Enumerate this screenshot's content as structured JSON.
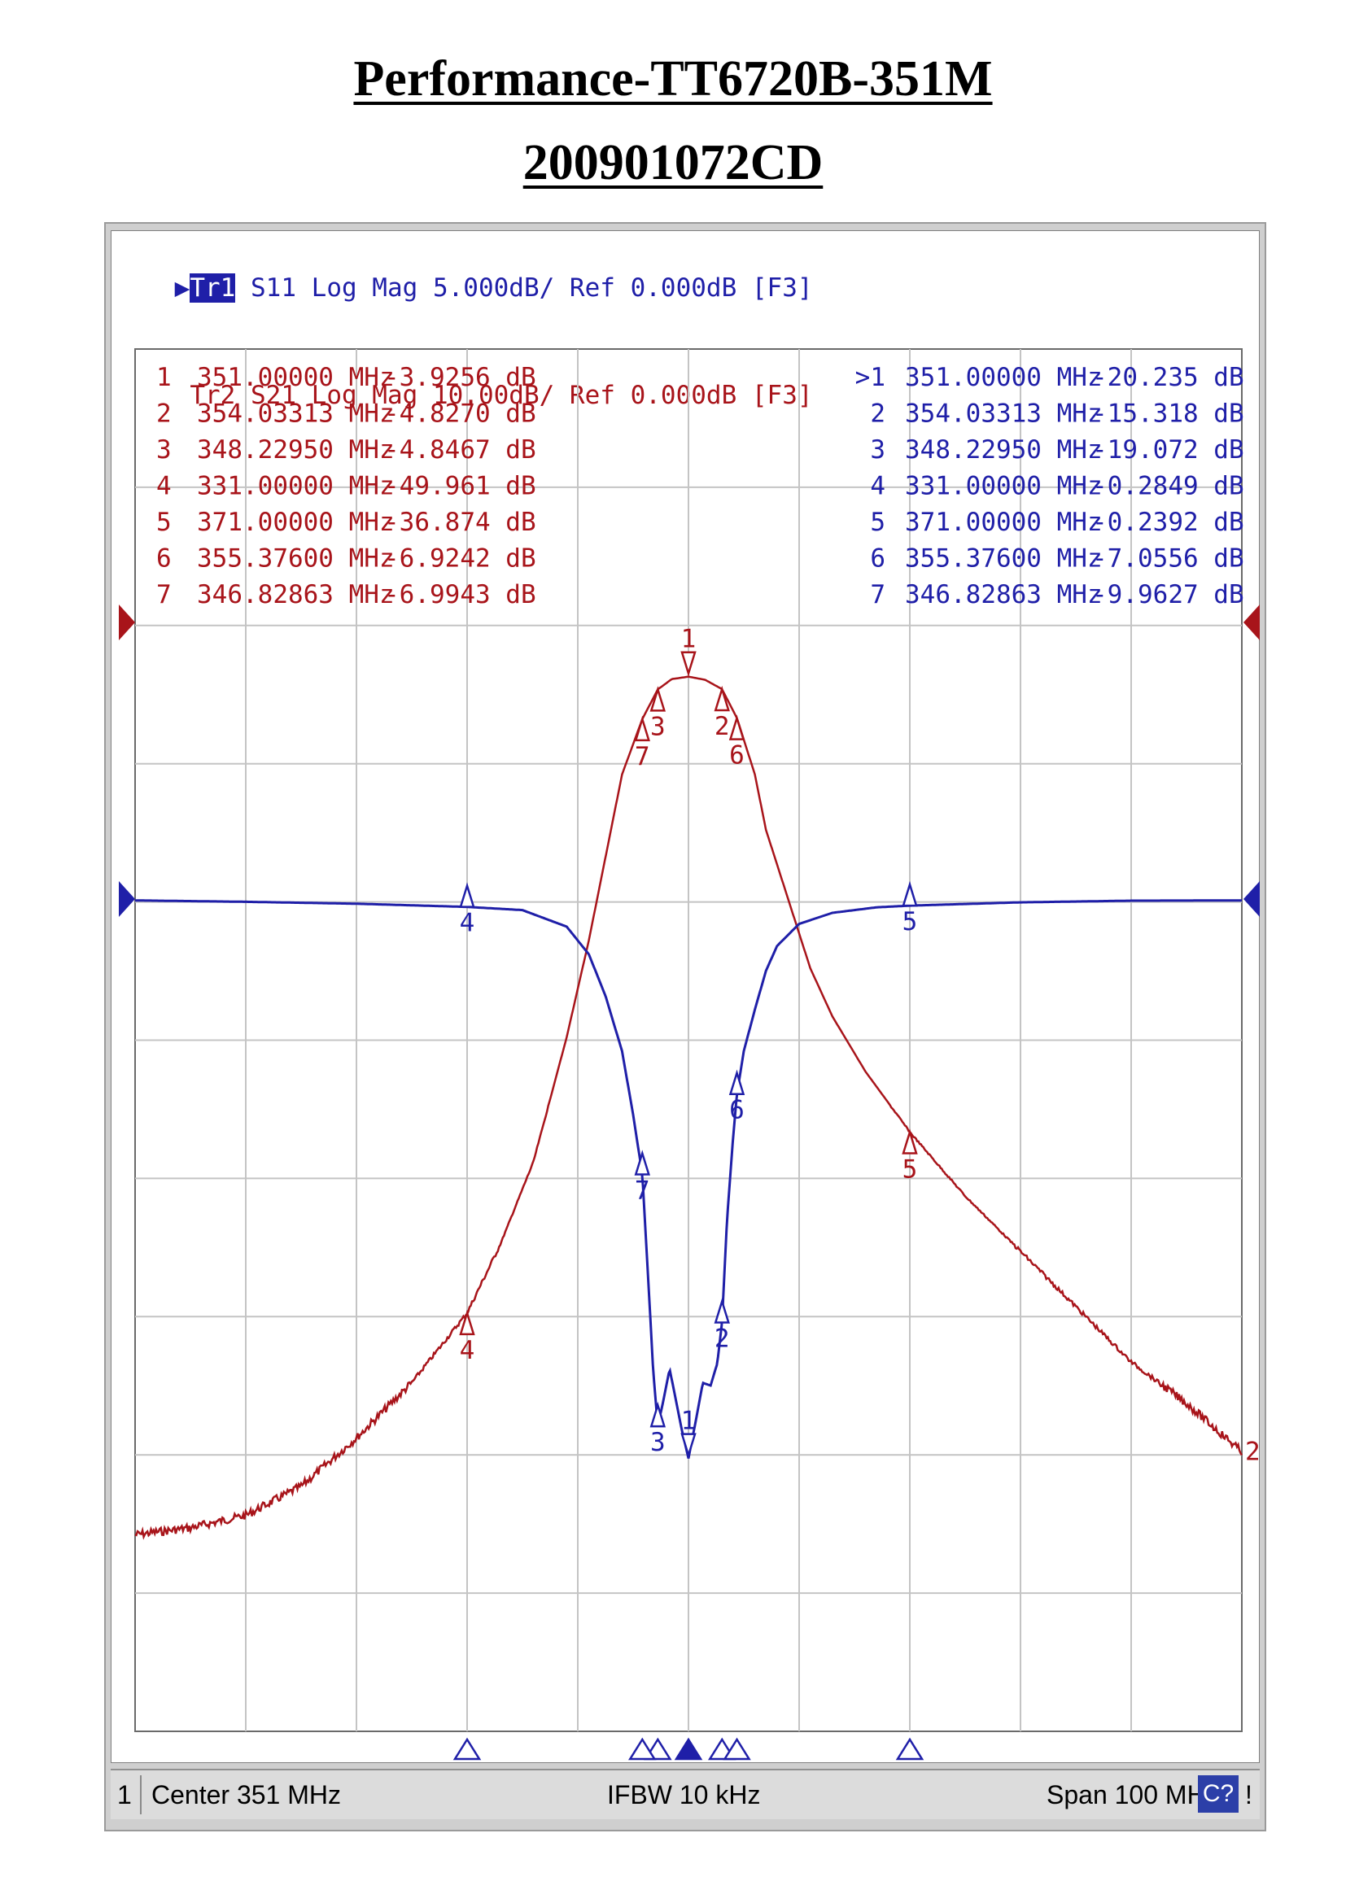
{
  "page": {
    "title": "Performance-TT6720B-351M",
    "subtitle": "200901072CD"
  },
  "traces": [
    {
      "label": "Tr1",
      "text": "S11 Log Mag 5.000dB/ Ref 0.000dB [F3]",
      "color": "#1f1fa8",
      "active": true
    },
    {
      "label": "Tr2",
      "text": "S21 Log Mag 10.00dB/ Ref 0.000dB [F3]",
      "color": "#a8141a",
      "active": false
    }
  ],
  "markers_s21": [
    {
      "num": "1",
      "freq": "351.00000 MHz",
      "val": "-3.9256 dB"
    },
    {
      "num": "2",
      "freq": "354.03313 MHz",
      "val": "-4.8270 dB"
    },
    {
      "num": "3",
      "freq": "348.22950 MHz",
      "val": "-4.8467 dB"
    },
    {
      "num": "4",
      "freq": "331.00000 MHz",
      "val": "-49.961 dB"
    },
    {
      "num": "5",
      "freq": "371.00000 MHz",
      "val": "-36.874 dB"
    },
    {
      "num": "6",
      "freq": "355.37600 MHz",
      "val": "-6.9242 dB"
    },
    {
      "num": "7",
      "freq": "346.82863 MHz",
      "val": "-6.9943 dB"
    }
  ],
  "markers_s11": [
    {
      "num": ">1",
      "freq": "351.00000 MHz",
      "val": "-20.235 dB"
    },
    {
      "num": "2",
      "freq": "354.03313 MHz",
      "val": "-15.318 dB"
    },
    {
      "num": "3",
      "freq": "348.22950 MHz",
      "val": "-19.072 dB"
    },
    {
      "num": "4",
      "freq": "331.00000 MHz",
      "val": "-0.2849 dB"
    },
    {
      "num": "5",
      "freq": "371.00000 MHz",
      "val": "-0.2392 dB"
    },
    {
      "num": "6",
      "freq": "355.37600 MHz",
      "val": "-7.0556 dB"
    },
    {
      "num": "7",
      "freq": "346.82863 MHz",
      "val": "-9.9627 dB"
    }
  ],
  "status_bar": {
    "channel": "1",
    "center": "Center 351 MHz",
    "ifbw": "IFBW 10 kHz",
    "span": "Span 100 MHz",
    "cal": "C?",
    "warning": "!"
  },
  "chart_data": {
    "type": "line",
    "xlim": [
      301,
      401
    ],
    "x_unit": "MHz",
    "grid": true,
    "series": [
      {
        "name": "S21",
        "color": "#a8141a",
        "scale_db_per_div": 10,
        "ref_db": 0,
        "ylim": [
          -100,
          0
        ],
        "points": [
          [
            301,
            -66
          ],
          [
            306,
            -65.5
          ],
          [
            311,
            -64.6
          ],
          [
            316,
            -62.5
          ],
          [
            321,
            -59
          ],
          [
            326,
            -55
          ],
          [
            331,
            -49.961
          ],
          [
            334,
            -45
          ],
          [
            337,
            -39
          ],
          [
            340,
            -30
          ],
          [
            342,
            -23
          ],
          [
            344,
            -15
          ],
          [
            345,
            -11
          ],
          [
            346.83,
            -6.9943
          ],
          [
            348.23,
            -4.8467
          ],
          [
            349.5,
            -4.1
          ],
          [
            351,
            -3.9256
          ],
          [
            352.5,
            -4.15
          ],
          [
            354.03,
            -4.827
          ],
          [
            355.38,
            -6.9242
          ],
          [
            357,
            -11
          ],
          [
            358,
            -15
          ],
          [
            360,
            -20
          ],
          [
            362,
            -25
          ],
          [
            364,
            -28.5
          ],
          [
            367,
            -32.5
          ],
          [
            371,
            -36.874
          ],
          [
            376,
            -41.5
          ],
          [
            381,
            -45.5
          ],
          [
            386,
            -49.5
          ],
          [
            391,
            -53.5
          ],
          [
            396,
            -56.5
          ],
          [
            401,
            -60
          ]
        ]
      },
      {
        "name": "S11",
        "color": "#1f1fa8",
        "scale_db_per_div": 5,
        "ref_db": 0,
        "ylim": [
          -50,
          0
        ],
        "points": [
          [
            301,
            -0.05
          ],
          [
            311,
            -0.1
          ],
          [
            321,
            -0.17
          ],
          [
            331,
            -0.2849
          ],
          [
            336,
            -0.4
          ],
          [
            340,
            -1.0
          ],
          [
            342,
            -2.0
          ],
          [
            343.5,
            -3.5
          ],
          [
            345,
            -5.5
          ],
          [
            346,
            -7.8
          ],
          [
            346.83,
            -9.9627
          ],
          [
            347.4,
            -14
          ],
          [
            347.8,
            -17
          ],
          [
            348.23,
            -19.072
          ],
          [
            348.7,
            -18.2
          ],
          [
            349.3,
            -17
          ],
          [
            349.8,
            -18
          ],
          [
            350.4,
            -19.2
          ],
          [
            351,
            -20.235
          ],
          [
            351.6,
            -19.0
          ],
          [
            352.3,
            -17.5
          ],
          [
            353.0,
            -17.6
          ],
          [
            353.6,
            -16.8
          ],
          [
            354.03,
            -15.318
          ],
          [
            354.5,
            -11.5
          ],
          [
            355.0,
            -8.8
          ],
          [
            355.38,
            -7.0556
          ],
          [
            356,
            -5.5
          ],
          [
            357,
            -4.0
          ],
          [
            358,
            -2.6
          ],
          [
            359,
            -1.7
          ],
          [
            361,
            -0.9
          ],
          [
            364,
            -0.5
          ],
          [
            368,
            -0.3
          ],
          [
            371,
            -0.2392
          ],
          [
            381,
            -0.12
          ],
          [
            391,
            -0.06
          ],
          [
            401,
            -0.05
          ]
        ]
      }
    ],
    "marker_freqs": [
      351.0,
      354.03313,
      348.2295,
      331.0,
      371.0,
      355.376,
      346.82863
    ],
    "marker_s21_db": [
      -3.9256,
      -4.827,
      -4.8467,
      -49.961,
      -36.874,
      -6.9242,
      -6.9943
    ],
    "marker_s11_db": [
      -20.235,
      -15.318,
      -19.072,
      -0.2849,
      -0.2392,
      -7.0556,
      -9.9627
    ],
    "marker_labels": [
      "1",
      "2",
      "3",
      "4",
      "5",
      "6",
      "7"
    ],
    "s21_end_label": "2"
  }
}
